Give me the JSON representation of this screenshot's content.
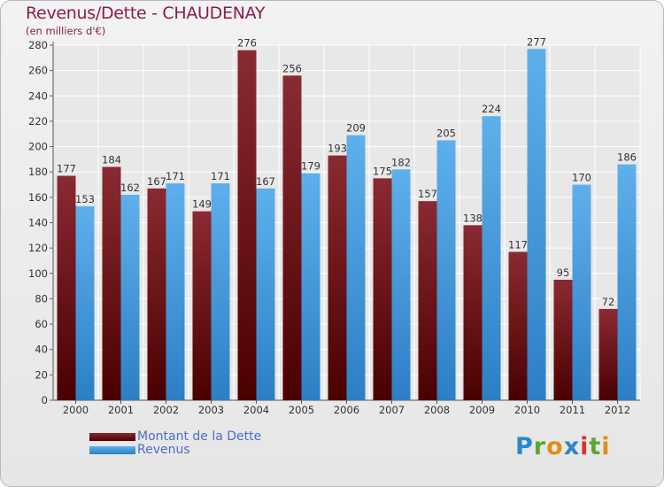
{
  "chart_data": {
    "type": "bar",
    "title": "Revenus/Dette - CHAUDENAY",
    "subtitle": "(en milliers d'€)",
    "xlabel": "",
    "ylabel": "",
    "ylim": [
      0,
      280
    ],
    "ytick_step": 20,
    "grid": true,
    "legend_position": "bottom-left",
    "categories": [
      "2000",
      "2001",
      "2002",
      "2003",
      "2004",
      "2005",
      "2006",
      "2007",
      "2008",
      "2009",
      "2010",
      "2011",
      "2012"
    ],
    "series": [
      {
        "name": "Montant de la Dette",
        "color_top": "#8a2a32",
        "color_bottom": "#4a0000",
        "values": [
          177,
          184,
          167,
          149,
          276,
          256,
          193,
          175,
          157,
          138,
          117,
          95,
          72
        ]
      },
      {
        "name": "Revenus",
        "color_top": "#5eb0ec",
        "color_bottom": "#2c7fc4",
        "values": [
          153,
          162,
          171,
          171,
          167,
          179,
          209,
          182,
          205,
          224,
          277,
          170,
          186
        ]
      }
    ]
  },
  "logo": {
    "text": [
      "P",
      "r",
      "o",
      "x",
      "i",
      "t",
      "i"
    ]
  }
}
